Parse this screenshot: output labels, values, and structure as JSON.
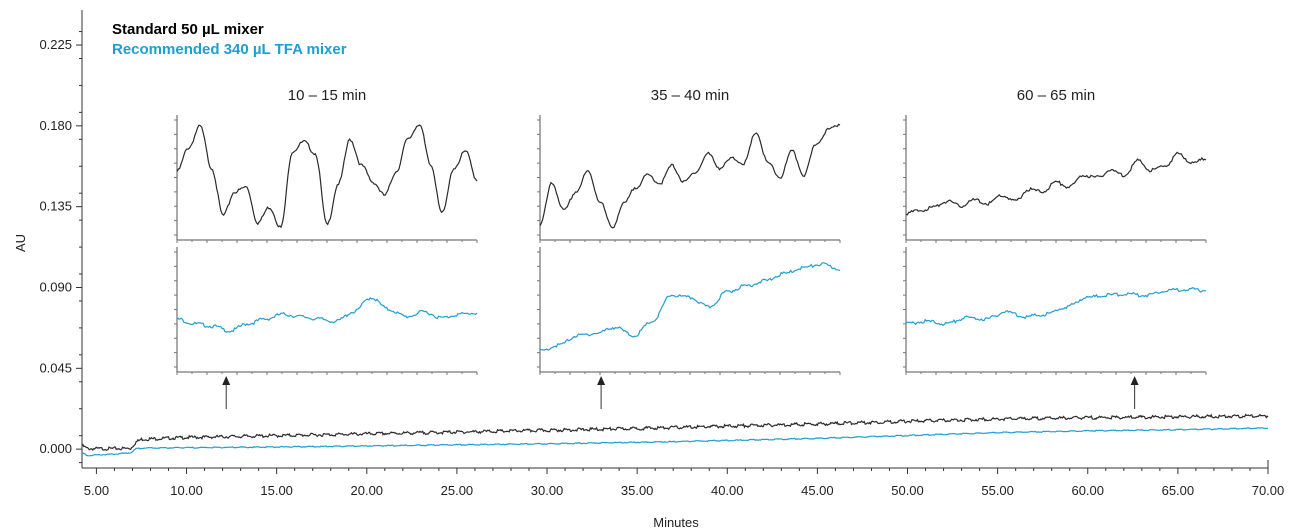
{
  "colors": {
    "standard": "#2b2b2b",
    "recommended": "#1f9ed1",
    "axis": "#333333"
  },
  "chart_data": {
    "type": "line",
    "xlabel": "Minutes",
    "ylabel": "AU",
    "xlim": [
      4.2,
      70.0
    ],
    "ylim": [
      -0.0105,
      0.2445
    ],
    "x_ticks": [
      "5.00",
      "10.00",
      "15.00",
      "20.00",
      "25.00",
      "30.00",
      "35.00",
      "40.00",
      "45.00",
      "50.00",
      "55.00",
      "60.00",
      "65.00",
      "70.00"
    ],
    "y_ticks": [
      "0.000",
      "0.045",
      "0.090",
      "0.135",
      "0.180",
      "0.225"
    ],
    "legend": {
      "position": "top-left",
      "entries": [
        "Standard 50 µL mixer",
        "Recommended 340 µL TFA mixer"
      ]
    },
    "grid": false,
    "series": [
      {
        "name": "Standard 50 µL mixer",
        "x": [
          4.2,
          4.5,
          5.0,
          6.0,
          6.9,
          7.2,
          7.5,
          10,
          15,
          20,
          25,
          30,
          35,
          40,
          45,
          50,
          55,
          60,
          65,
          70
        ],
        "values": [
          0.002,
          0.0003,
          0.0002,
          0.0003,
          0.0004,
          0.004,
          0.0055,
          0.0065,
          0.0075,
          0.0085,
          0.0095,
          0.0105,
          0.0115,
          0.0128,
          0.014,
          0.0155,
          0.0168,
          0.0175,
          0.018,
          0.0185
        ]
      },
      {
        "name": "Recommended 340 µL TFA mixer",
        "x": [
          4.2,
          4.5,
          5.0,
          6.0,
          6.9,
          7.2,
          7.5,
          10,
          15,
          20,
          25,
          30,
          35,
          40,
          45,
          50,
          55,
          60,
          65,
          70
        ],
        "values": [
          -0.002,
          -0.0035,
          -0.0032,
          -0.0028,
          -0.002,
          0.0002,
          0.0006,
          0.0008,
          0.0012,
          0.0018,
          0.0024,
          0.003,
          0.0038,
          0.0048,
          0.006,
          0.0076,
          0.0092,
          0.0102,
          0.0108,
          0.0118
        ]
      }
    ],
    "insets": [
      {
        "title": "10 – 15 min",
        "arrow_x": 12.2,
        "standard": [
          0.55,
          0.75,
          0.93,
          0.58,
          0.18,
          0.38,
          0.42,
          0.12,
          0.25,
          0.08,
          0.72,
          0.8,
          0.7,
          0.1,
          0.45,
          0.82,
          0.6,
          0.46,
          0.35,
          0.55,
          0.82,
          0.95,
          0.6,
          0.2,
          0.58,
          0.72,
          0.48
        ],
        "recommended": [
          0.42,
          0.38,
          0.36,
          0.32,
          0.38,
          0.42,
          0.46,
          0.44,
          0.42,
          0.4,
          0.48,
          0.6,
          0.5,
          0.44,
          0.48,
          0.43,
          0.46,
          0.47
        ]
      },
      {
        "title": "35 – 40 min",
        "arrow_x": 33.0,
        "standard": [
          0.1,
          0.45,
          0.22,
          0.38,
          0.55,
          0.3,
          0.08,
          0.28,
          0.42,
          0.52,
          0.45,
          0.6,
          0.46,
          0.55,
          0.7,
          0.58,
          0.66,
          0.62,
          0.88,
          0.62,
          0.5,
          0.72,
          0.52,
          0.78,
          0.9,
          0.95
        ],
        "recommended": [
          0.15,
          0.2,
          0.28,
          0.3,
          0.35,
          0.28,
          0.4,
          0.62,
          0.6,
          0.52,
          0.65,
          0.7,
          0.74,
          0.8,
          0.85,
          0.88,
          0.84
        ]
      },
      {
        "title": "60 – 65 min",
        "arrow_x": 62.6,
        "standard": [
          0.2,
          0.22,
          0.25,
          0.3,
          0.26,
          0.31,
          0.28,
          0.35,
          0.3,
          0.4,
          0.38,
          0.46,
          0.42,
          0.52,
          0.5,
          0.56,
          0.52,
          0.64,
          0.56,
          0.6,
          0.7,
          0.62,
          0.66
        ],
        "recommended": [
          0.38,
          0.4,
          0.38,
          0.43,
          0.42,
          0.48,
          0.44,
          0.46,
          0.52,
          0.6,
          0.62,
          0.63,
          0.62,
          0.66,
          0.67,
          0.66
        ]
      }
    ]
  }
}
